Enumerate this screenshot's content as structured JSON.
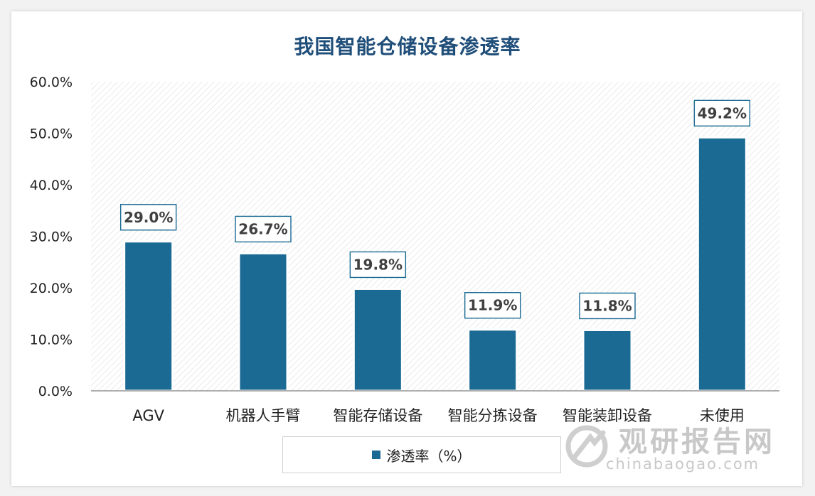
{
  "chart_data": {
    "type": "bar",
    "title": "我国智能仓储设备渗透率",
    "categories": [
      "AGV",
      "机器人手臂",
      "智能存储设备",
      "智能分拣设备",
      "智能装卸设备",
      "未使用"
    ],
    "series": [
      {
        "name": "渗透率（%）",
        "values": [
          29.0,
          26.7,
          19.8,
          11.9,
          11.8,
          49.2
        ]
      }
    ],
    "data_labels": [
      "29.0%",
      "26.7%",
      "19.8%",
      "11.9%",
      "11.8%",
      "49.2%"
    ],
    "y_ticks": [
      "0.0%",
      "10.0%",
      "20.0%",
      "30.0%",
      "40.0%",
      "50.0%",
      "60.0%"
    ],
    "ylim": [
      0,
      60
    ],
    "grid": false,
    "legend_position": "bottom",
    "colors": {
      "bar": "#1a6a93",
      "title": "#1f4e79",
      "label_border": "#1a6a93"
    }
  },
  "watermark": {
    "brand": "观研报告网",
    "url": "chinabaogao.com"
  }
}
